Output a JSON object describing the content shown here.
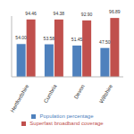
{
  "chart_data": {
    "type": "bar",
    "categories": [
      "Hertfordshire",
      "Cumbria",
      "Devon",
      "Wiltshire"
    ],
    "series": [
      {
        "name": "Population percentage",
        "color": "#4f81bd",
        "values": [
          54.0,
          53.58,
          51.45,
          47.5
        ],
        "value_labels": [
          "54.00",
          "53.58",
          "51.45",
          "47.50"
        ]
      },
      {
        "name": "Superfast broadband coverage",
        "color": "#c0504d",
        "values": [
          94.46,
          94.38,
          92.9,
          96.89
        ],
        "value_labels": [
          "94.46",
          "94.38",
          "92.90",
          "96.89"
        ]
      }
    ],
    "ylim": [
      0,
      100
    ],
    "data_labels": true,
    "grid": false,
    "tick_labels": "x",
    "legend": "bottom"
  }
}
